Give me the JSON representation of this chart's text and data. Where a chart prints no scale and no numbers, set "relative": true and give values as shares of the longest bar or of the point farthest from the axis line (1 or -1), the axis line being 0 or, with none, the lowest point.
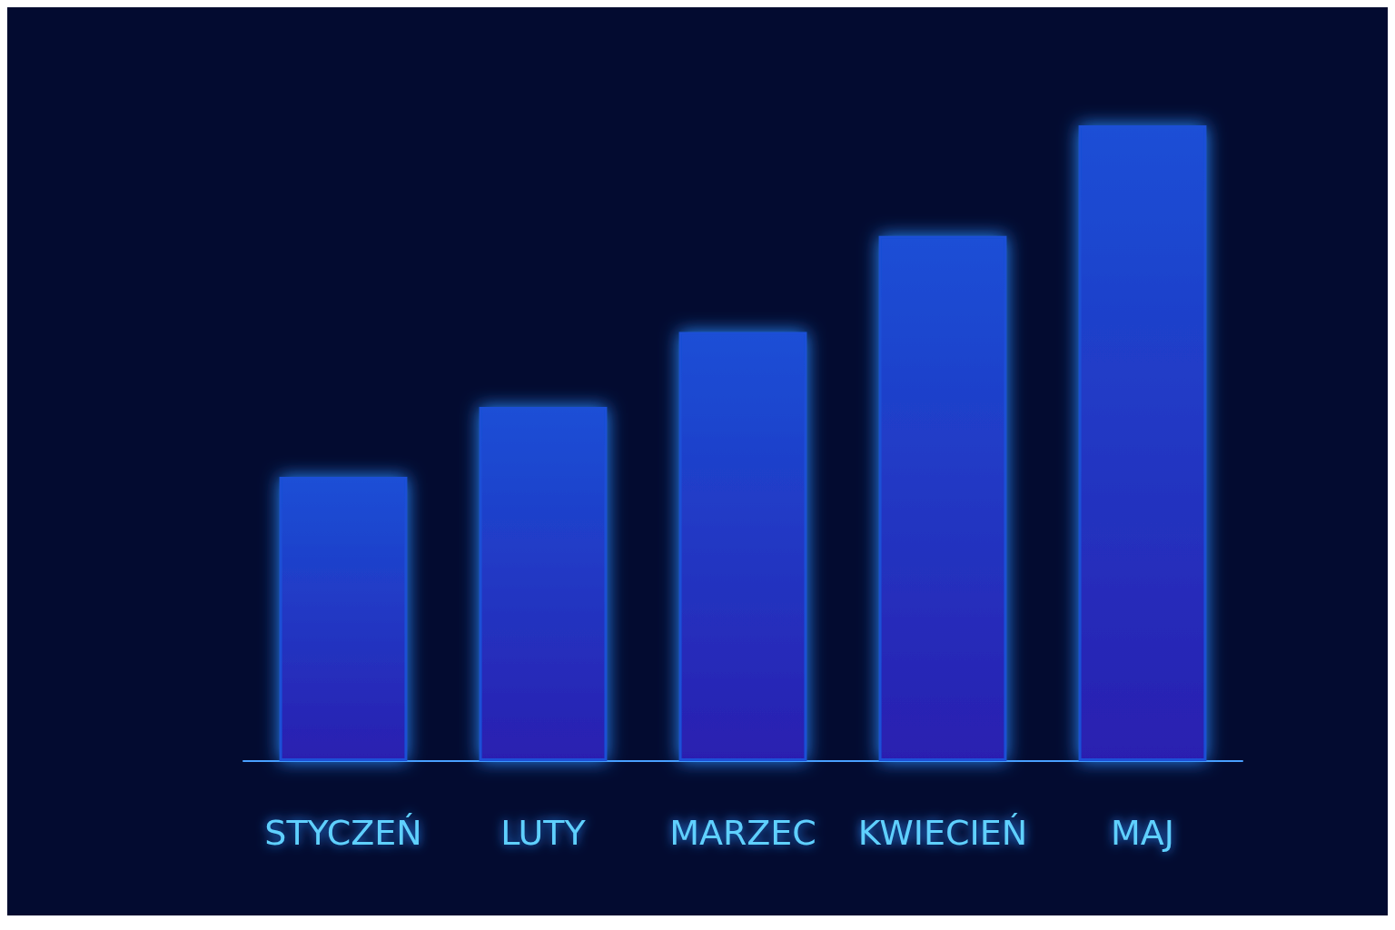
{
  "chart_data": {
    "type": "bar",
    "relative": true,
    "categories": [
      "STYCZEŃ",
      "LUTY",
      "MARZEC",
      "KWIECIEŃ",
      "MAJ"
    ],
    "values": [
      0.447,
      0.557,
      0.675,
      0.826,
      1
    ],
    "color": "#1a4fd6"
  }
}
